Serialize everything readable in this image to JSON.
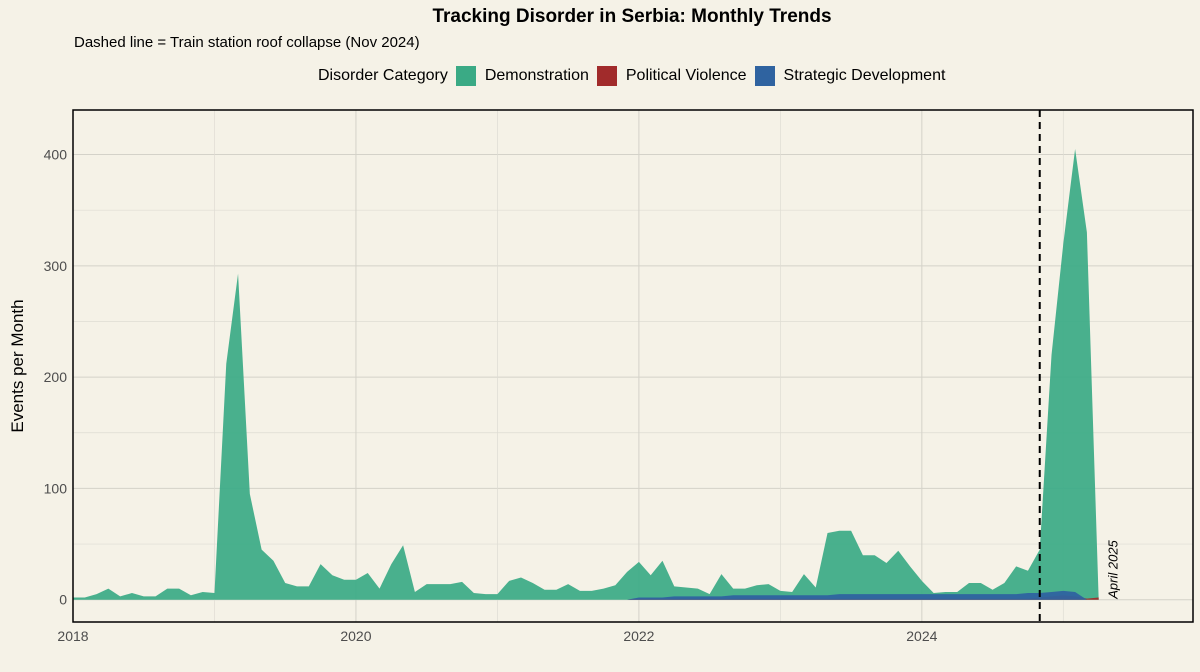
{
  "chart_data": {
    "type": "area",
    "title": "Tracking Disorder in Serbia: Monthly Trends",
    "subtitle": "Dashed line = Train station roof collapse (Nov 2024)",
    "ylabel": "Events per Month",
    "xlabel": "",
    "xlim": [
      "2018-01",
      "2025-12"
    ],
    "ylim": [
      -20,
      440
    ],
    "x_ticks": [
      "2018",
      "2020",
      "2022",
      "2024"
    ],
    "y_ticks": [
      0,
      100,
      200,
      300,
      400
    ],
    "grid": true,
    "legend": {
      "title": "Disorder Category",
      "placement": "top"
    },
    "vline": {
      "x": "2024-11",
      "style": "dashed"
    },
    "annotation": {
      "text": "April 2025",
      "x": "2025-04"
    },
    "x": [
      "2018-01",
      "2018-02",
      "2018-03",
      "2018-04",
      "2018-05",
      "2018-06",
      "2018-07",
      "2018-08",
      "2018-09",
      "2018-10",
      "2018-11",
      "2018-12",
      "2019-01",
      "2019-02",
      "2019-03",
      "2019-04",
      "2019-05",
      "2019-06",
      "2019-07",
      "2019-08",
      "2019-09",
      "2019-10",
      "2019-11",
      "2019-12",
      "2020-01",
      "2020-02",
      "2020-03",
      "2020-04",
      "2020-05",
      "2020-06",
      "2020-07",
      "2020-08",
      "2020-09",
      "2020-10",
      "2020-11",
      "2020-12",
      "2021-01",
      "2021-02",
      "2021-03",
      "2021-04",
      "2021-05",
      "2021-06",
      "2021-07",
      "2021-08",
      "2021-09",
      "2021-10",
      "2021-11",
      "2021-12",
      "2022-01",
      "2022-02",
      "2022-03",
      "2022-04",
      "2022-05",
      "2022-06",
      "2022-07",
      "2022-08",
      "2022-09",
      "2022-10",
      "2022-11",
      "2022-12",
      "2023-01",
      "2023-02",
      "2023-03",
      "2023-04",
      "2023-05",
      "2023-06",
      "2023-07",
      "2023-08",
      "2023-09",
      "2023-10",
      "2023-11",
      "2023-12",
      "2024-01",
      "2024-02",
      "2024-03",
      "2024-04",
      "2024-05",
      "2024-06",
      "2024-07",
      "2024-08",
      "2024-09",
      "2024-10",
      "2024-11",
      "2024-12",
      "2025-01",
      "2025-02",
      "2025-03",
      "2025-04"
    ],
    "series": [
      {
        "name": "Demonstration",
        "color": "#3aaa85",
        "values": [
          2,
          2,
          5,
          10,
          3,
          6,
          3,
          3,
          10,
          10,
          4,
          7,
          6,
          212,
          293,
          95,
          45,
          35,
          15,
          12,
          12,
          32,
          22,
          18,
          18,
          24,
          10,
          32,
          49,
          7,
          14,
          14,
          14,
          16,
          6,
          5,
          5,
          17,
          20,
          15,
          9,
          9,
          14,
          8,
          8,
          10,
          13,
          25,
          34,
          22,
          35,
          12,
          11,
          10,
          5,
          23,
          10,
          10,
          13,
          14,
          8,
          7,
          23,
          11,
          60,
          62,
          62,
          40,
          40,
          33,
          44,
          30,
          17,
          6,
          7,
          7,
          15,
          15,
          9,
          15,
          30,
          26,
          45,
          220,
          320,
          405,
          330,
          0
        ]
      },
      {
        "name": "Political Violence",
        "color": "#a12b2b",
        "values": [
          0,
          0,
          0,
          0,
          0,
          0,
          0,
          0,
          0,
          0,
          0,
          0,
          0,
          0,
          0,
          0,
          0,
          0,
          0,
          0,
          0,
          0,
          0,
          0,
          0,
          0,
          0,
          0,
          0,
          0,
          0,
          0,
          0,
          0,
          0,
          0,
          0,
          0,
          0,
          0,
          0,
          0,
          0,
          0,
          0,
          0,
          0,
          0,
          1,
          1,
          1,
          1,
          1,
          1,
          1,
          1,
          1,
          1,
          1,
          1,
          1,
          1,
          1,
          1,
          1,
          1,
          1,
          1,
          1,
          1,
          1,
          1,
          1,
          1,
          1,
          1,
          1,
          1,
          1,
          1,
          1,
          1,
          2,
          3,
          4,
          3,
          1,
          2
        ]
      },
      {
        "name": "Strategic Development",
        "color": "#2f63a0",
        "values": [
          0,
          0,
          0,
          0,
          0,
          0,
          0,
          0,
          0,
          0,
          0,
          0,
          0,
          0,
          0,
          0,
          0,
          0,
          0,
          0,
          0,
          0,
          0,
          0,
          0,
          0,
          0,
          0,
          0,
          0,
          0,
          0,
          0,
          0,
          0,
          0,
          0,
          0,
          0,
          0,
          0,
          0,
          0,
          0,
          0,
          0,
          0,
          0,
          2,
          2,
          2,
          3,
          3,
          3,
          3,
          3,
          4,
          4,
          4,
          4,
          4,
          4,
          4,
          4,
          4,
          5,
          5,
          5,
          5,
          5,
          5,
          5,
          5,
          5,
          5,
          5,
          5,
          5,
          5,
          5,
          5,
          6,
          6,
          7,
          8,
          7,
          0,
          0
        ]
      }
    ]
  }
}
